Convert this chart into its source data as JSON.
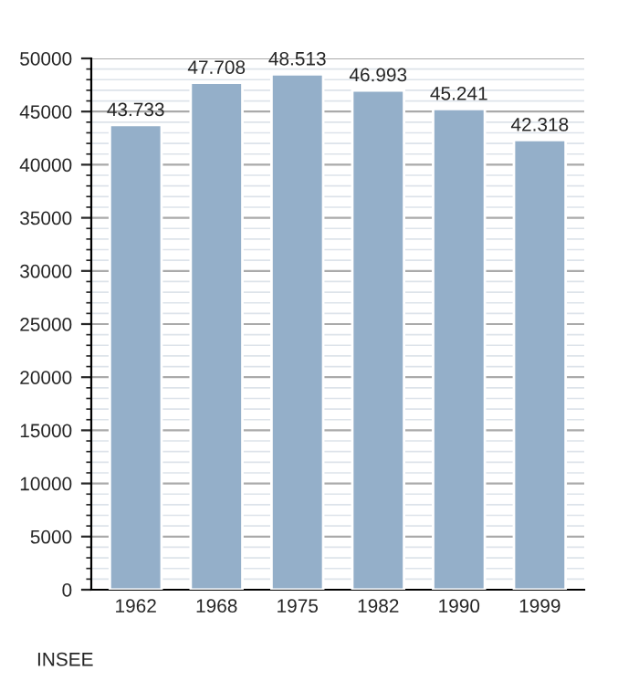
{
  "chart_data": {
    "type": "bar",
    "categories": [
      "1962",
      "1968",
      "1975",
      "1982",
      "1990",
      "1999"
    ],
    "values": [
      43733,
      47708,
      48513,
      46993,
      45241,
      42318
    ],
    "value_labels": [
      "43.733",
      "47.708",
      "48.513",
      "46.993",
      "45.241",
      "42.318"
    ],
    "color": "#94afc9",
    "ylim": [
      0,
      50000
    ],
    "yticks": [
      0,
      5000,
      10000,
      15000,
      20000,
      25000,
      30000,
      35000,
      40000,
      45000,
      50000
    ],
    "grid": "y",
    "annotations": [
      "INSEE"
    ]
  }
}
